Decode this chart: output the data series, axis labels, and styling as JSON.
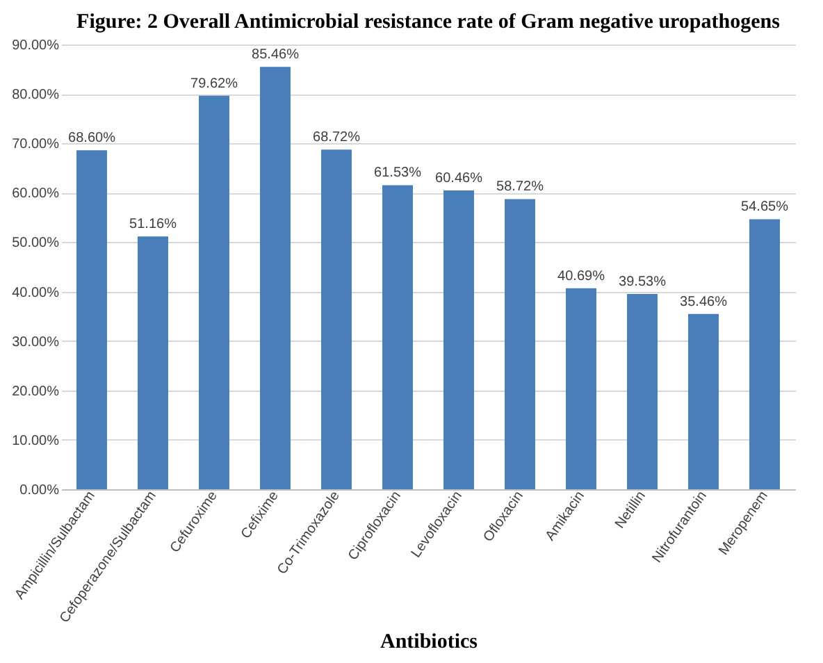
{
  "chart_data": {
    "type": "bar",
    "title": "Figure: 2 Overall Antimicrobial resistance rate of Gram negative uropathogens",
    "xlabel": "Antibiotics",
    "categories": [
      "Ampicillin/Sulbactam",
      "Cefoperazone/Sulbactam",
      "Cefuroxime",
      "Cefixime",
      "Co-Trimoxazole",
      "Ciprofloxacin",
      "Levofloxacin",
      "Ofloxacin",
      "Amikacin",
      "Netillin",
      "Nitrofurantoin",
      "Meropenem"
    ],
    "values": [
      68.6,
      51.16,
      79.62,
      85.46,
      68.72,
      61.53,
      60.46,
      58.72,
      40.69,
      39.53,
      35.46,
      54.65
    ],
    "value_labels": [
      "68.60%",
      "51.16%",
      "79.62%",
      "85.46%",
      "68.72%",
      "61.53%",
      "60.46%",
      "58.72%",
      "40.69%",
      "39.53%",
      "35.46%",
      "54.65%"
    ],
    "color": "#4a7ebb",
    "ylim": [
      0,
      90
    ],
    "yticks": [
      {
        "value": 0,
        "label": "0.00%"
      },
      {
        "value": 10,
        "label": "10.00%"
      },
      {
        "value": 20,
        "label": "20.00%"
      },
      {
        "value": 30,
        "label": "30.00%"
      },
      {
        "value": 40,
        "label": "40.00%"
      },
      {
        "value": 50,
        "label": "50.00%"
      },
      {
        "value": 60,
        "label": "60.00%"
      },
      {
        "value": 70,
        "label": "70.00%"
      },
      {
        "value": 80,
        "label": "80.00%"
      },
      {
        "value": 90,
        "label": "90.00%"
      }
    ],
    "grid": "y"
  }
}
